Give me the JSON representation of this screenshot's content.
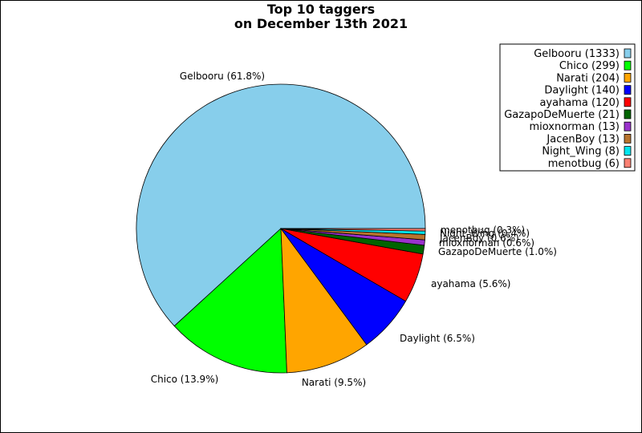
{
  "chart_data": {
    "type": "pie",
    "title_lines": [
      "Top 10 taggers",
      "on December 13th 2021"
    ],
    "slices": [
      {
        "name": "Gelbooru",
        "value": 1333,
        "percent_label": "Gelbooru (61.8%)",
        "legend_label": "Gelbooru (1333)",
        "color": "#87ceeb"
      },
      {
        "name": "Chico",
        "value": 299,
        "percent_label": "Chico (13.9%)",
        "legend_label": "Chico (299)",
        "color": "#00ff00"
      },
      {
        "name": "Narati",
        "value": 204,
        "percent_label": "Narati (9.5%)",
        "legend_label": "Narati (204)",
        "color": "#ffa500"
      },
      {
        "name": "Daylight",
        "value": 140,
        "percent_label": "Daylight (6.5%)",
        "legend_label": "Daylight (140)",
        "color": "#0000ff"
      },
      {
        "name": "ayahama",
        "value": 120,
        "percent_label": "ayahama (5.6%)",
        "legend_label": "ayahama (120)",
        "color": "#ff0000"
      },
      {
        "name": "GazapoDeMuerte",
        "value": 21,
        "percent_label": "GazapoDeMuerte (1.0%)",
        "legend_label": "GazapoDeMuerte (21)",
        "color": "#006400"
      },
      {
        "name": "mioxnorman",
        "value": 13,
        "percent_label": "mioxnorman (0.6%)",
        "legend_label": "mioxnorman (13)",
        "color": "#9932cc"
      },
      {
        "name": "JacenBoy",
        "value": 13,
        "percent_label": "JacenBoy (0.6%)",
        "legend_label": "JacenBoy (13)",
        "color": "#b8732d"
      },
      {
        "name": "Night_Wing",
        "value": 8,
        "percent_label": "Night_Wing (0.4%)",
        "legend_label": "Night_Wing (8)",
        "color": "#00e5ee"
      },
      {
        "name": "menotbug",
        "value": 6,
        "percent_label": "menotbug (0.3%)",
        "legend_label": "menotbug (6)",
        "color": "#fa8072"
      }
    ],
    "start_angle_deg": 0,
    "direction": "counterclockwise",
    "legend_position": "top-right"
  }
}
